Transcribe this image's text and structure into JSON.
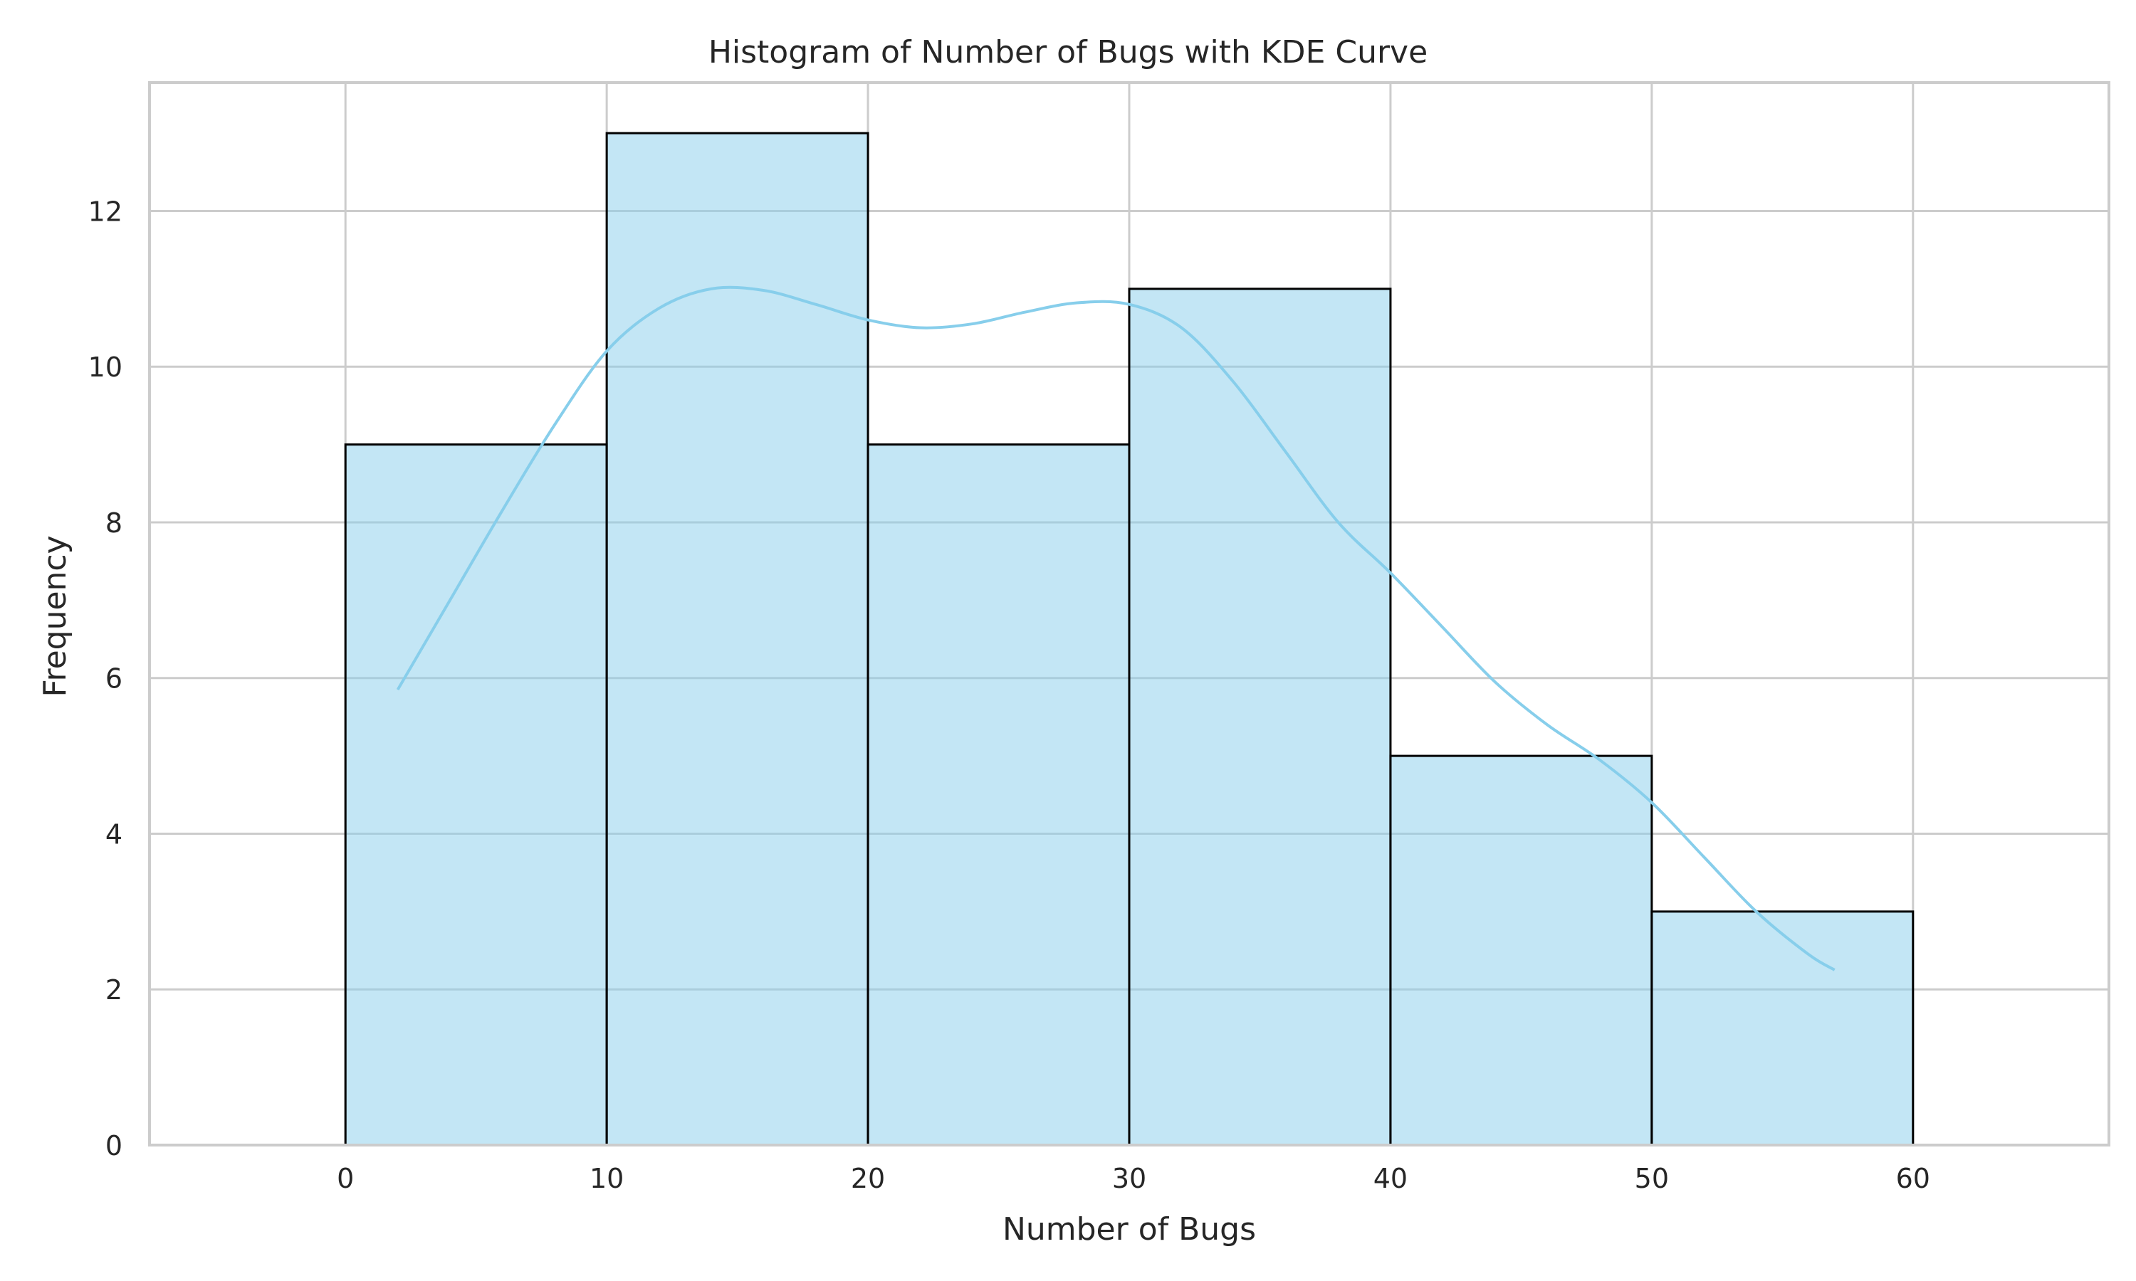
{
  "chart_data": {
    "type": "histogram",
    "title": "Histogram of Number of Bugs with KDE Curve",
    "xlabel": "Number of Bugs",
    "ylabel": "Frequency",
    "xlim": [
      -7.5,
      67.5
    ],
    "ylim": [
      0,
      13.65
    ],
    "x_ticks": [
      0,
      10,
      20,
      30,
      40,
      50,
      60
    ],
    "y_ticks": [
      0,
      2,
      4,
      6,
      8,
      10,
      12
    ],
    "grid": true,
    "bins": [
      {
        "start": 0,
        "end": 10,
        "count": 9
      },
      {
        "start": 10,
        "end": 20,
        "count": 13
      },
      {
        "start": 20,
        "end": 30,
        "count": 9
      },
      {
        "start": 30,
        "end": 40,
        "count": 11
      },
      {
        "start": 40,
        "end": 50,
        "count": 5
      },
      {
        "start": 50,
        "end": 60,
        "count": 3
      }
    ],
    "kde": {
      "x": [
        2,
        4,
        6,
        8,
        10,
        12,
        14,
        16,
        18,
        20,
        22,
        24,
        26,
        28,
        30,
        32,
        34,
        36,
        38,
        40,
        42,
        44,
        46,
        48,
        50,
        52,
        54,
        56,
        57
      ],
      "y": [
        5.85,
        7.0,
        8.15,
        9.25,
        10.2,
        10.75,
        11.0,
        10.98,
        10.8,
        10.6,
        10.5,
        10.55,
        10.7,
        10.82,
        10.8,
        10.5,
        9.8,
        8.9,
        8.0,
        7.35,
        6.65,
        5.95,
        5.4,
        4.95,
        4.4,
        3.7,
        3.0,
        2.45,
        2.25
      ]
    },
    "colors": {
      "bar_fill": "#87ceeb",
      "bar_edge": "#000000",
      "kde_line": "#87ceeb"
    }
  }
}
